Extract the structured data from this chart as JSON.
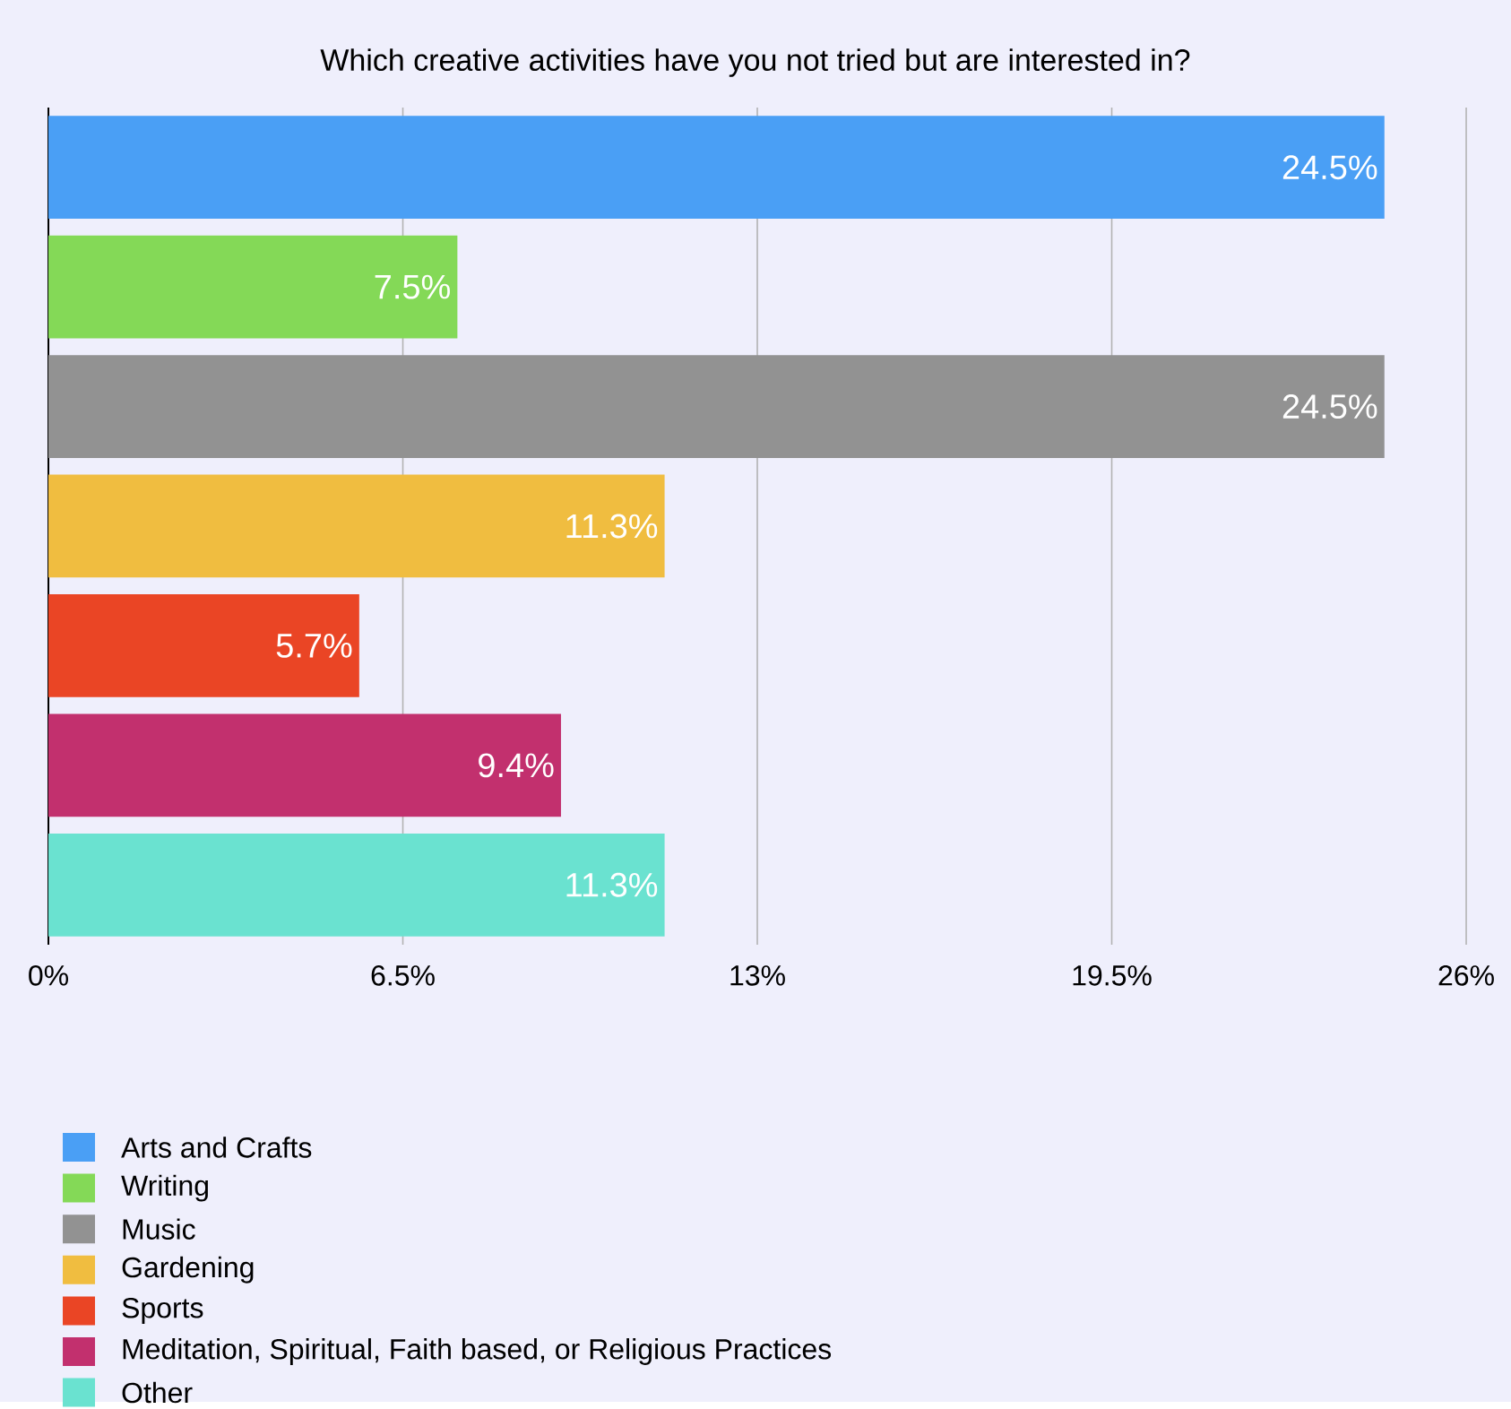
{
  "chart_data": {
    "type": "bar",
    "orientation": "horizontal",
    "title": "Which creative activities have you not tried but are interested in?",
    "categories": [
      null,
      null,
      null,
      null,
      null,
      null,
      null
    ],
    "series": [
      {
        "name": "Arts and Crafts",
        "color": "#4a9ff5",
        "values": [
          24.5,
          null,
          null,
          null,
          null,
          null,
          null
        ],
        "value_labels": [
          "24.5%",
          null,
          null,
          null,
          null,
          null,
          null
        ]
      },
      {
        "name": "Writing",
        "color": "#84d957",
        "values": [
          null,
          7.5,
          null,
          null,
          null,
          null,
          null
        ],
        "value_labels": [
          null,
          "7.5%",
          null,
          null,
          null,
          null,
          null
        ]
      },
      {
        "name": "Music",
        "color": "#929292",
        "values": [
          null,
          null,
          24.5,
          null,
          null,
          null,
          null
        ],
        "value_labels": [
          null,
          null,
          "24.5%",
          null,
          null,
          null,
          null
        ]
      },
      {
        "name": "Gardening",
        "color": "#f0bd40",
        "values": [
          null,
          null,
          null,
          11.3,
          null,
          null,
          null
        ],
        "value_labels": [
          null,
          null,
          null,
          "11.3%",
          null,
          null,
          null
        ]
      },
      {
        "name": "Sports",
        "color": "#ea4525",
        "values": [
          null,
          null,
          null,
          null,
          5.7,
          null,
          null
        ],
        "value_labels": [
          null,
          null,
          null,
          null,
          "5.7%",
          null,
          null
        ]
      },
      {
        "name": "Meditation, Spiritual, Faith based, or Religious Practices",
        "color": "#c2306e",
        "values": [
          null,
          null,
          null,
          null,
          null,
          9.4,
          null
        ],
        "value_labels": [
          null,
          null,
          null,
          null,
          null,
          "9.4%",
          null
        ]
      },
      {
        "name": "Other",
        "color": "#6ae2d0",
        "values": [
          null,
          null,
          null,
          null,
          null,
          null,
          11.3
        ],
        "value_labels": [
          null,
          null,
          null,
          null,
          null,
          null,
          "11.3%"
        ]
      }
    ],
    "xlim": [
      0,
      26
    ],
    "xticks": [
      {
        "value": 0,
        "label": "0%"
      },
      {
        "value": 6.5,
        "label": "6.5%"
      },
      {
        "value": 13,
        "label": "13%"
      },
      {
        "value": 19.5,
        "label": "19.5%"
      },
      {
        "value": 26,
        "label": "26%"
      }
    ],
    "grid": "x",
    "legend": "bottom"
  }
}
